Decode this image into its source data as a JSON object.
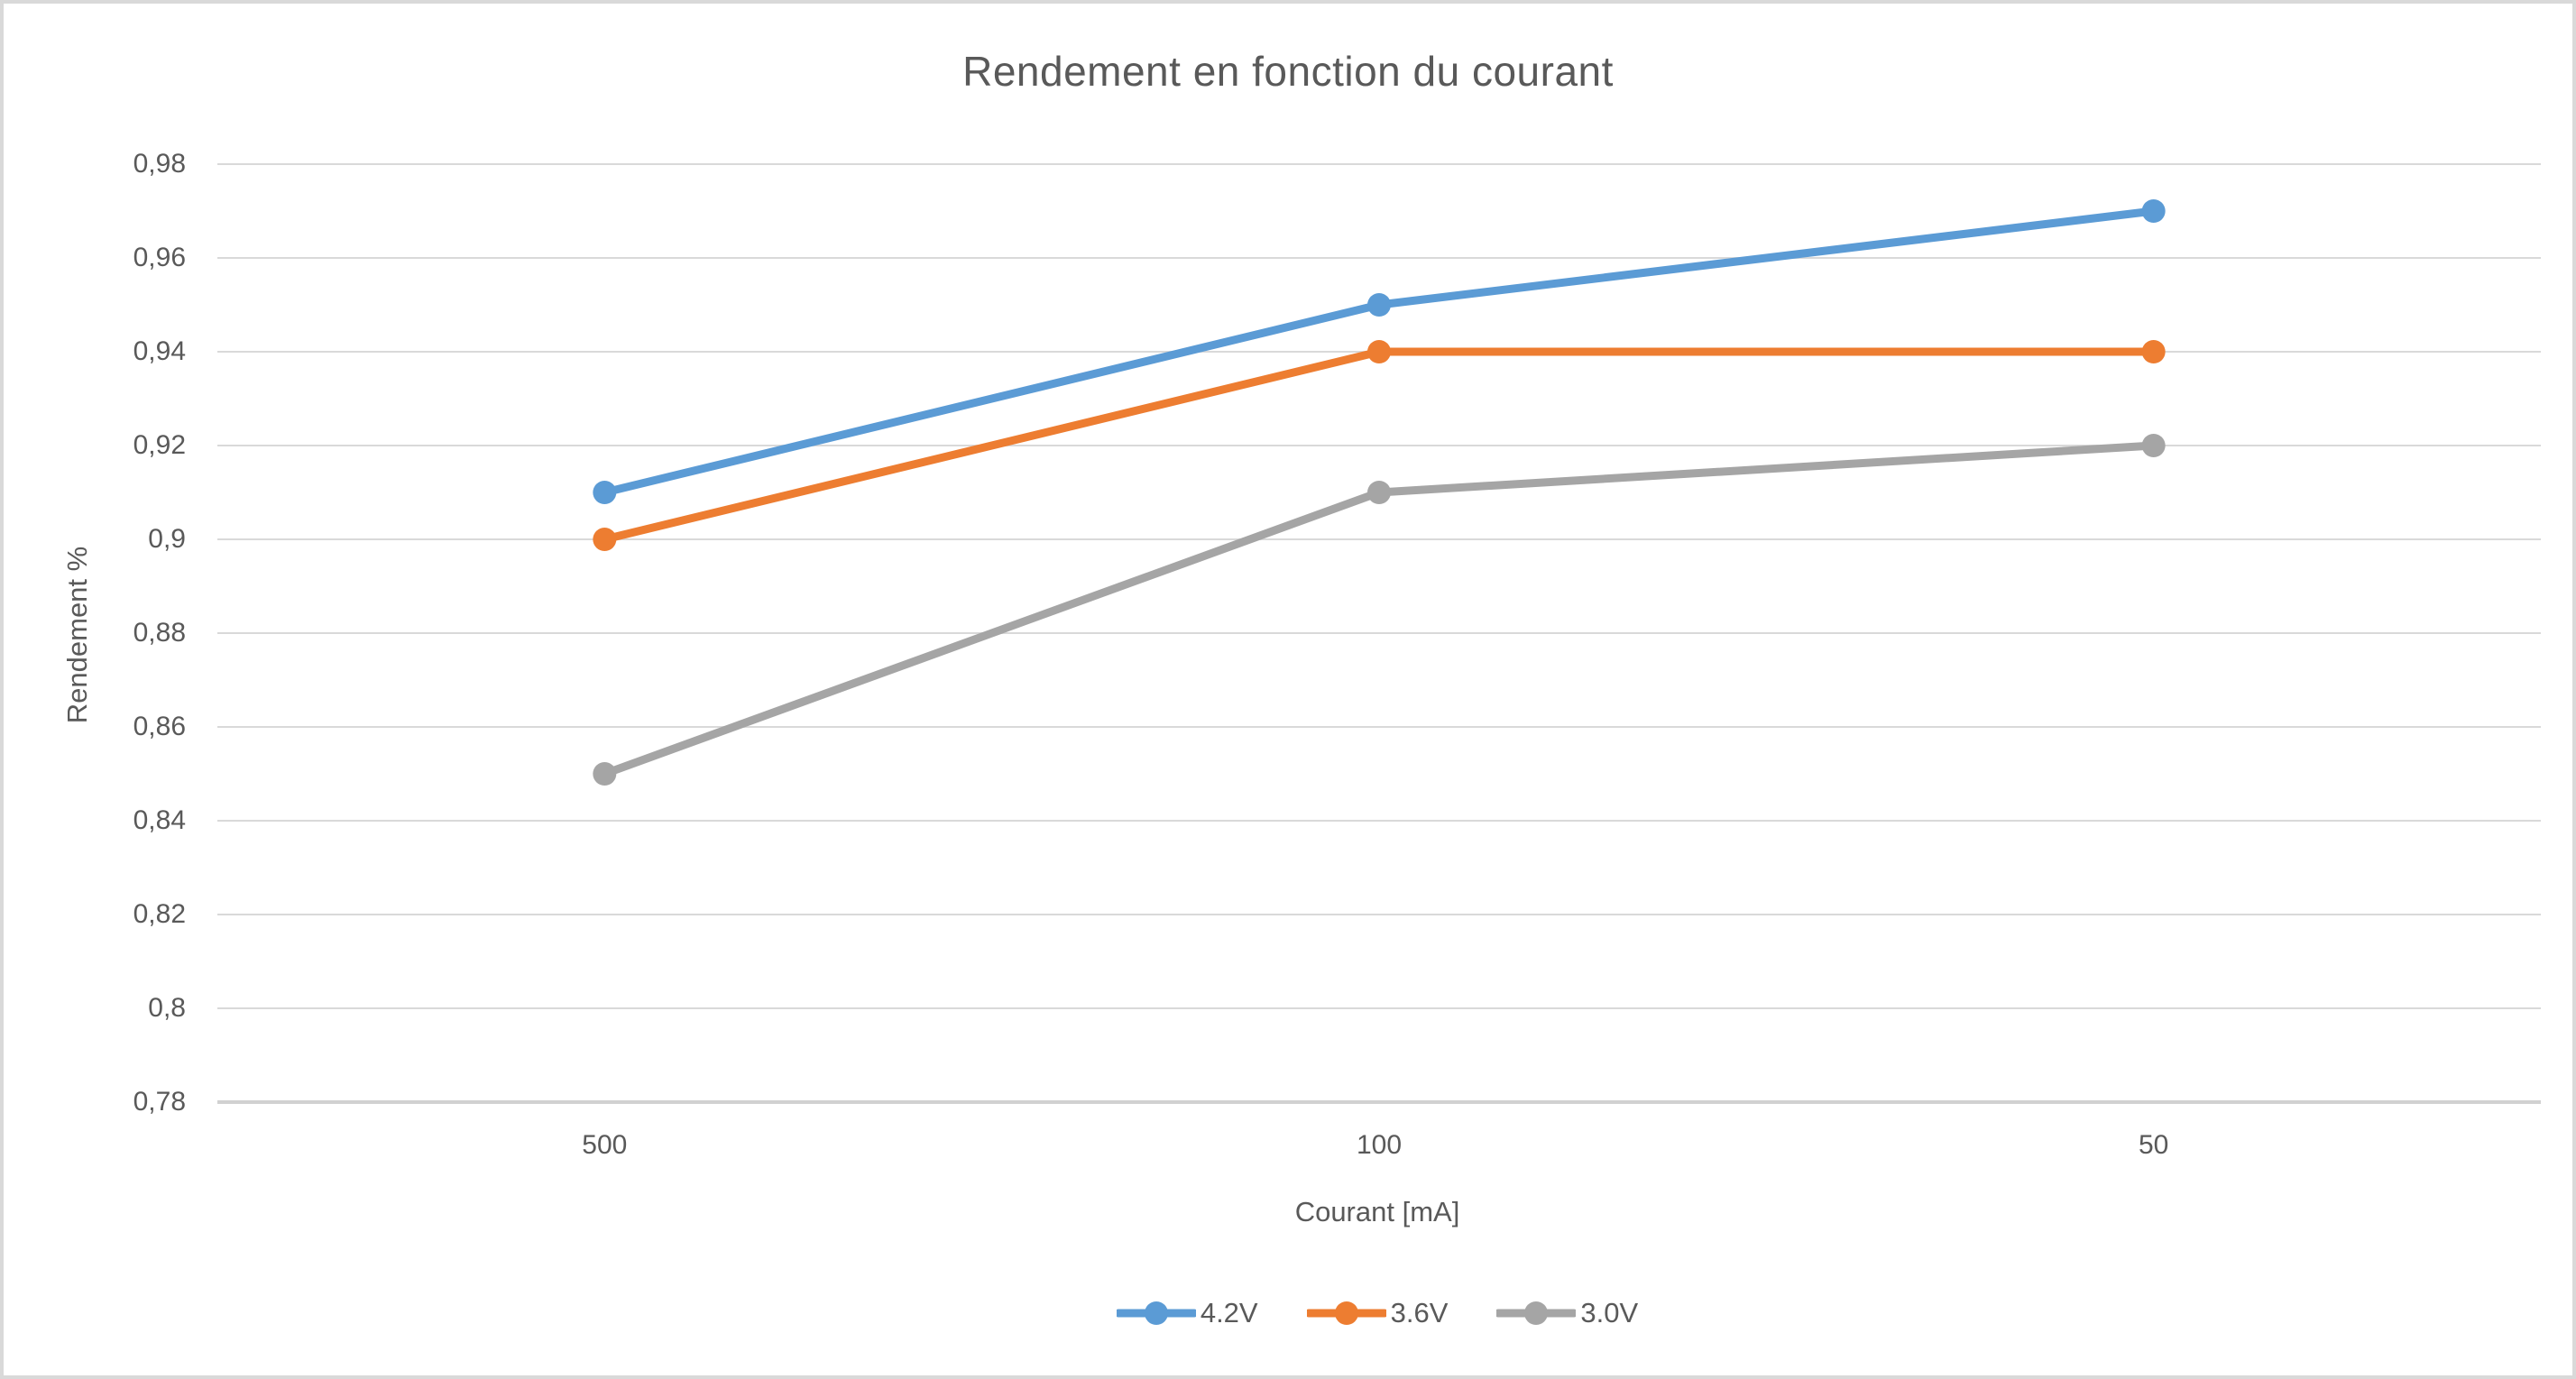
{
  "window": {
    "background_color": "#FFFFFF",
    "border_color": "#D9D9D9"
  },
  "chart_data": {
    "type": "line",
    "title": "Rendement en fonction du courant",
    "xlabel": "Courant [mA]",
    "ylabel": "Rendement %",
    "categories": [
      "500",
      "100",
      "50"
    ],
    "series": [
      {
        "name": "4.2V",
        "color": "#5B9BD5",
        "values": [
          0.91,
          0.95,
          0.97
        ]
      },
      {
        "name": "3.6V",
        "color": "#ED7D31",
        "values": [
          0.9,
          0.94,
          0.94
        ]
      },
      {
        "name": "3.0V",
        "color": "#A5A5A5",
        "values": [
          0.85,
          0.91,
          0.92
        ]
      }
    ],
    "y_ticks": [
      {
        "value": 0.98,
        "label": "0,98"
      },
      {
        "value": 0.96,
        "label": "0,96"
      },
      {
        "value": 0.94,
        "label": "0,94"
      },
      {
        "value": 0.92,
        "label": "0,92"
      },
      {
        "value": 0.9,
        "label": "0,9"
      },
      {
        "value": 0.88,
        "label": "0,88"
      },
      {
        "value": 0.86,
        "label": "0,86"
      },
      {
        "value": 0.84,
        "label": "0,84"
      },
      {
        "value": 0.82,
        "label": "0,82"
      },
      {
        "value": 0.8,
        "label": "0,8"
      },
      {
        "value": 0.78,
        "label": "0,78"
      }
    ],
    "ylim": [
      0.78,
      0.98
    ],
    "decimal_separator": ",",
    "grid": "horizontal",
    "legend_position": "bottom",
    "marker": "circle",
    "styles": {
      "text_color": "#595959",
      "gridline_color": "#D9D9D9",
      "axis_line_color": "#D1D1D1",
      "line_width": 9,
      "marker_radius": 13
    }
  }
}
